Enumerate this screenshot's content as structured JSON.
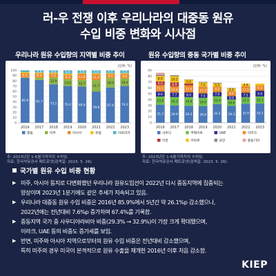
{
  "title_line1": "러-우 전쟁 이후 우리나라의 대중동 원유",
  "title_line2": "수입 비중 변화와 시사점",
  "left_heading": "우리나라 원유 수입량의 지역별 비중 추이",
  "right_heading": "원유 수입량의 중동 국가별 비중 추이",
  "unit_label": "(단위: %)",
  "left_note1": "주: 2023년은 1-6월기까지의 수치임.",
  "left_note2": "자료: 한국석유공사 페트로넷(검색일: 2023. 5. 26).",
  "right_note1": "주: 2023년은 1-6월기까지의 수치임.",
  "right_note2": "자료: 한국석유공사 페트로넷(검색일: 2023. 5. 26).",
  "section_title": "국가별 원유 수입 비중 현황",
  "bullets": [
    "미주, 아시아 등지로 다변화했던 우리나라 원유도입선이 2022년 다시 중동지역에 집중되는",
    "양상이며 2023년 1분기에도 같은 추세가 지속되고 있음.",
    "우리나라 대중동 원유 수입 비중은 2016년 85.9%에서 5년간 약 26.1%p 감소했으나,",
    "2022년에는 전년대비 7.6%p 증가하며 67.4%를 기록함.",
    "중동지역 국가 중 사우디아라비아 비중(29.3% → 32.9%)이 가장 크게 확대됐으며,",
    "이라크, UAE 등의 비중도 증가세를 보임.",
    "반면, 미주와 아시아 지역으로부터의 원유 수입 비중은 전년대비 감소했으며,",
    "특히 미주의 경우 미국이 본격적으로 원유 수출을 재개한 2016년 이후 처음 감소함."
  ],
  "logo": "KIEP",
  "colors": {
    "background": "#1b2444",
    "accent_red": "#c8102e",
    "middle_east": "#4a78b8",
    "americas": "#8db64a",
    "asia": "#ea8b2c",
    "europe": "#f3c21b",
    "africa": "#5ab5c8",
    "saudi": "#4a78b8",
    "kuwait": "#6fbf4a",
    "uae": "#2c2c8c",
    "iraq": "#ea8b2c",
    "iran": "#b23a3a",
    "qatar": "#f3c21b",
    "oman": "#8a8a8a",
    "other_me": "#e2a0a0"
  },
  "chart_data": [
    {
      "type": "bar",
      "stacked": true,
      "categories": [
        "2016",
        "2017",
        "2018",
        "2019",
        "2020",
        "2021",
        "2022",
        "2023"
      ],
      "ylim": [
        0,
        100
      ],
      "ytick_labels": [
        "0",
        "10",
        "20",
        "30",
        "40",
        "50",
        "60",
        "70",
        "80",
        "90",
        "100"
      ],
      "series": [
        {
          "name": "중동",
          "values": [
            85.9,
            81.7,
            73.5,
            70.2,
            69.0,
            59.8,
            67.4,
            70.2
          ]
        },
        {
          "name": "미주",
          "values": [
            0.7,
            4.1,
            12.9,
            13.0,
            12.7,
            21.7,
            18.0,
            14.4
          ]
        },
        {
          "name": "아시아",
          "values": [
            8.4,
            8.4,
            7.5,
            8.3,
            11.8,
            11.0,
            8.0,
            8.6
          ]
        },
        {
          "name": "유럽",
          "values": [
            1.7,
            1.4,
            1.5,
            2.1,
            1.0,
            1.6,
            1.1,
            1.3
          ]
        },
        {
          "name": "아프리카",
          "values": [
            3.3,
            4.4,
            4.6,
            6.4,
            5.5,
            5.9,
            5.5,
            5.5
          ]
        }
      ],
      "data_labels": [
        [
          "85.9",
          "0.7",
          "8.4",
          "",
          "3.3"
        ],
        [
          "81.7",
          "4.1",
          "8.4",
          "",
          "4.4"
        ],
        [
          "73.5",
          "12.9",
          "7.5",
          "",
          "4.6"
        ],
        [
          "70.2",
          "13.0",
          "8.3",
          "",
          "6.4"
        ],
        [
          "69.0",
          "12.7",
          "11.8",
          "",
          "5.5"
        ],
        [
          "59.8",
          "21.7",
          "11.0",
          "",
          "5.9"
        ],
        [
          "67.4",
          "18.0",
          "8.0",
          "",
          "5.5"
        ],
        [
          "70.2",
          "14.4",
          "8.6",
          "",
          "5.5"
        ]
      ]
    },
    {
      "type": "bar",
      "stacked": true,
      "categories": [
        "2016",
        "2017",
        "2018",
        "2019",
        "2020",
        "2021",
        "2022",
        "2023"
      ],
      "ylim": [
        0,
        90
      ],
      "ytick_labels": [
        "0",
        "10",
        "20",
        "30",
        "40",
        "50",
        "60",
        "70",
        "80",
        "90"
      ],
      "series": [
        {
          "name": "사우디",
          "values": [
            31.2,
            29.9,
            29.3,
            28.8,
            32.2,
            29.3,
            32.9,
            33.1
          ]
        },
        {
          "name": "쿠웨이트",
          "values": [
            13.9,
            14.3,
            14.9,
            14.0,
            13.4,
            10.6,
            11.1,
            12.1
          ]
        },
        {
          "name": "UAE",
          "values": [
            8.6,
            7.7,
            8.0,
            7.5,
            7.0,
            6.0,
            7.5,
            9.9
          ]
        },
        {
          "name": "이라크",
          "values": [
            11.1,
            10.6,
            12.0,
            11.0,
            9.5,
            8.8,
            11.5,
            9.3
          ]
        },
        {
          "name": "이란",
          "values": [
            6.5,
            6.9,
            3.3,
            0.6,
            0.0,
            0.0,
            0.0,
            0.0
          ]
        },
        {
          "name": "카타르",
          "values": [
            8.9,
            10.5,
            6.6,
            7.2,
            5.5,
            4.4,
            4.4,
            3.0
          ]
        },
        {
          "name": "오만",
          "values": [
            2.0,
            1.8,
            0.5,
            1.2,
            1.2,
            0.7,
            0.0,
            0.0
          ]
        },
        {
          "name": "중동기타",
          "values": [
            3.7,
            0.0,
            0.0,
            0.0,
            0.0,
            0.0,
            0.0,
            0.0
          ]
        }
      ],
      "data_labels": [
        [
          "31.2",
          "13.9",
          "8.6",
          "11.1",
          "6.5",
          "8.9",
          "2.0",
          "3.7"
        ],
        [
          "29.9",
          "14.3",
          "7.7",
          "10.6",
          "6.9",
          "10.5",
          "1.8",
          ""
        ],
        [
          "29.3",
          "14.9",
          "8.0",
          "12.0",
          "3.3",
          "6.6",
          "",
          ""
        ],
        [
          "28.8",
          "14.0",
          "7.5",
          "11.0",
          "",
          "7.2",
          "1.2",
          ""
        ],
        [
          "32.2",
          "13.4",
          "7.0",
          "9.5",
          "",
          "5.5",
          "1.2",
          ""
        ],
        [
          "29.3",
          "10.6",
          "6.0",
          "8.8",
          "",
          "4.4",
          "",
          ""
        ],
        [
          "32.9",
          "11.1",
          "7.5",
          "11.5",
          "",
          "4.4",
          "",
          ""
        ],
        [
          "33.1",
          "12.1",
          "9.9",
          "9.3",
          "",
          "3.0",
          "",
          ""
        ]
      ]
    }
  ]
}
